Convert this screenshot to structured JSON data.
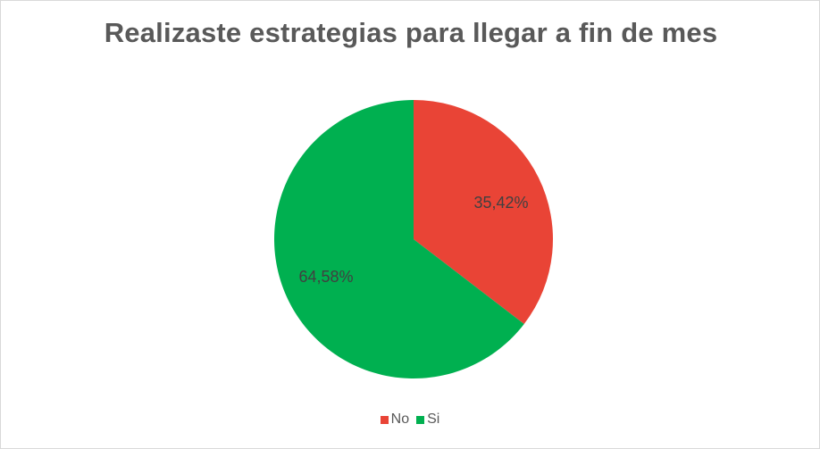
{
  "chart_data": {
    "type": "pie",
    "title": "Realizaste estrategias para llegar a fin de mes",
    "categories": [
      "No",
      "Si"
    ],
    "values": [
      35.42,
      64.58
    ],
    "data_labels": [
      "35,42%",
      "64,58%"
    ],
    "colors": [
      "#e94436",
      "#00b050"
    ],
    "legend_position": "bottom",
    "start_angle_deg": 0,
    "direction": "clockwise"
  }
}
